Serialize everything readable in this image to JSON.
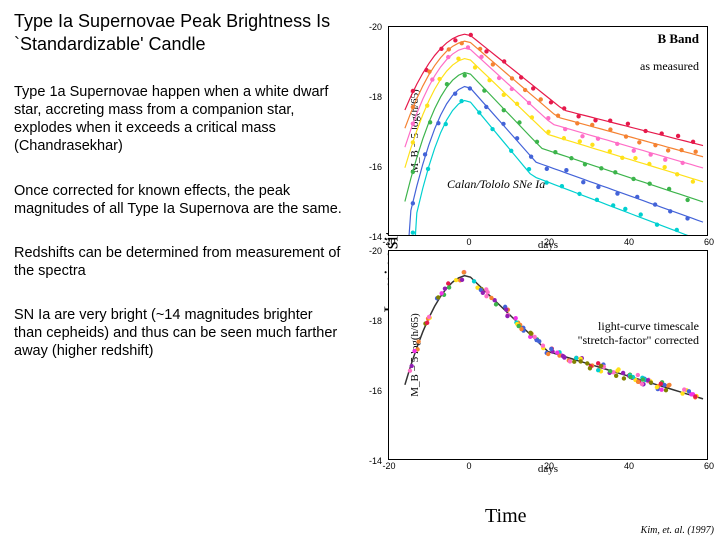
{
  "title": "Type Ia Supernovae Peak Brightness Is `Standardizable' Candle",
  "paragraphs": [
    "Type 1a Supernovae happen when a white dwarf star, accreting mass from a companion star, explodes when it exceeds a critical mass (Chandrasekhar)",
    "Once corrected for known effects, the peak magnitudes of all Type Ia Supernova are the same.",
    "Redshifts can be determined from measurement of the spectra",
    "SN Ia are very bright (~14 magnitudes brighter than cepheids) and thus can be seen much farther away (higher redshift)"
  ],
  "y_axis_big": "Luminosity",
  "x_axis_big": "Time",
  "citation": "Kim, et. al. (1997)",
  "topChart": {
    "title": "B Band",
    "annot1": "as measured",
    "annot2": "Calan/Tololo SNe Ia",
    "xlabel": "days",
    "ylabel": "M_B − 5 log(h/65)",
    "xlim": [
      -20,
      60
    ],
    "ylim_top": -20,
    "ylim_bottom": -14,
    "yticks": [
      -20,
      -18,
      -16,
      -14
    ],
    "xticks": [
      -20,
      0,
      20,
      40,
      60
    ],
    "series": [
      {
        "color": "#e6194b",
        "stretch": 1.2,
        "peak": -19.8,
        "phase": 0
      },
      {
        "color": "#f58231",
        "stretch": 1.12,
        "peak": -19.6,
        "phase": 0
      },
      {
        "color": "#ff6ec7",
        "stretch": 1.05,
        "peak": -19.4,
        "phase": 0
      },
      {
        "color": "#ffe119",
        "stretch": 1.0,
        "peak": -19.1,
        "phase": 0
      },
      {
        "color": "#3cb44b",
        "stretch": 0.92,
        "peak": -18.7,
        "phase": 0
      },
      {
        "color": "#4363d8",
        "stretch": 0.85,
        "peak": -18.3,
        "phase": 0
      },
      {
        "color": "#00d0d0",
        "stretch": 0.8,
        "peak": -17.9,
        "phase": 0
      }
    ],
    "marker_r": 2.2,
    "line_width": 1.2,
    "scatter_sigma": 0.1
  },
  "bottomChart": {
    "title": "",
    "annot1": "light-curve timescale",
    "annot2": "\"stretch-factor\" corrected",
    "xlabel": "days",
    "ylabel": "M_B − 5 log(h/65)",
    "xlim": [
      -20,
      60
    ],
    "ylim_top": -20,
    "ylim_bottom": -14,
    "yticks": [
      -20,
      -18,
      -16,
      -14
    ],
    "xticks": [
      -20,
      0,
      20,
      40,
      60
    ],
    "colors": [
      "#e6194b",
      "#f58231",
      "#ff6ec7",
      "#ffe119",
      "#3cb44b",
      "#4363d8",
      "#00d0d0",
      "#911eb4",
      "#f032e6",
      "#808000"
    ],
    "peak": -19.3,
    "marker_r": 2.2,
    "line_width": 1.5,
    "line_color": "#333333",
    "scatter_sigma": 0.12
  }
}
